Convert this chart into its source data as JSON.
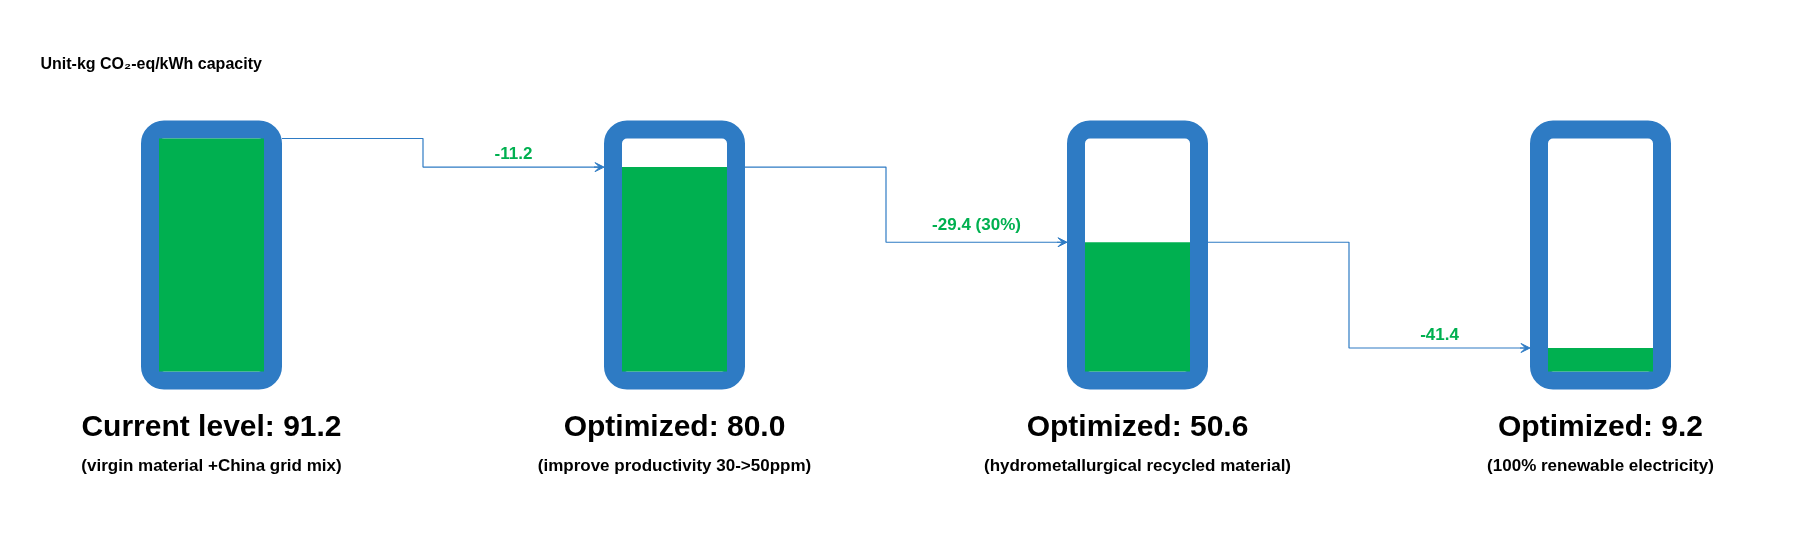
{
  "chart_data": {
    "type": "bar",
    "ylabel": "Unit-kg CO₂-eq/kWh capacity",
    "categories": [
      "(virgin material +China grid mix)",
      "(improve productivity 30->50ppm)",
      "(hydrometallurgical recycled material)",
      "(100% renewable electricity)"
    ],
    "values": [
      91.2,
      80.0,
      50.6,
      9.2
    ],
    "value_labels": [
      "Current level: 91.2",
      "Optimized: 80.0",
      "Optimized: 50.6",
      "Optimized: 9.2"
    ],
    "color": "#00b050",
    "annotations": [
      "-11.2",
      "-29.4 (30%)",
      "-41.4"
    ]
  }
}
